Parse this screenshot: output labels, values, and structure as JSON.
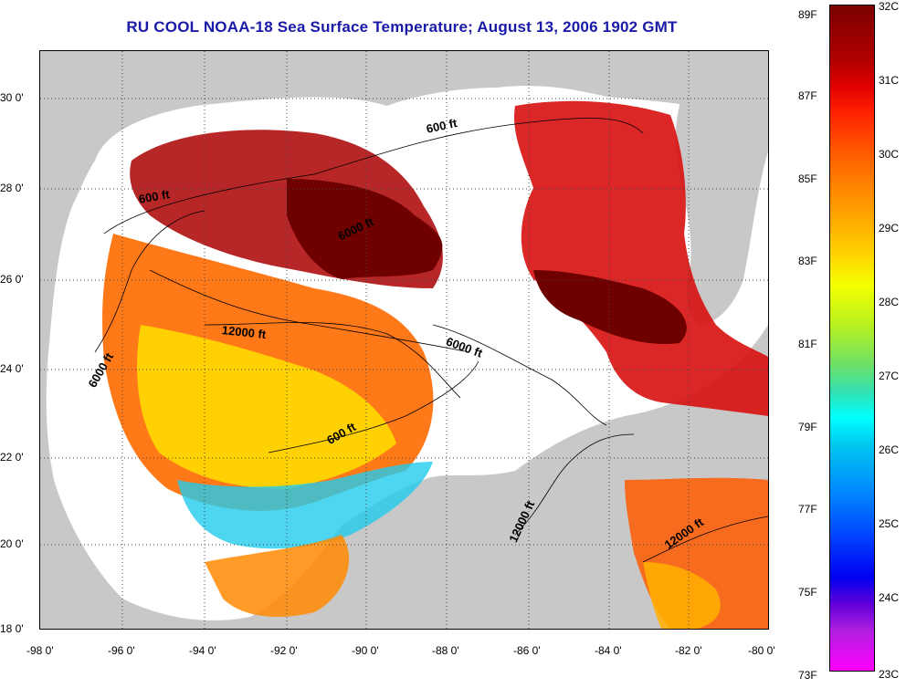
{
  "title": "RU COOL  NOAA-18  Sea Surface Temperature;  August 13, 2006 1902 GMT",
  "latitude_ticks": [
    "30 0'",
    "28 0'",
    "26 0'",
    "24 0'",
    "22 0'",
    "20 0'",
    "18 0'"
  ],
  "longitude_ticks": [
    "-98 0'",
    "-96 0'",
    "-94 0'",
    "-92 0'",
    "-90 0'",
    "-88 0'",
    "-86 0'",
    "-84 0'",
    "-82 0'",
    "-80 0'"
  ],
  "colorbar": {
    "fahrenheit": [
      "89F",
      "87F",
      "85F",
      "83F",
      "81F",
      "79F",
      "77F",
      "75F",
      "73F"
    ],
    "celsius": [
      "32C",
      "31C",
      "30C",
      "29C",
      "28C",
      "27C",
      "26C",
      "25C",
      "24C",
      "23C"
    ]
  },
  "contours": {
    "c1": "600 ft",
    "c2": "600 ft",
    "c3": "6000 ft",
    "c4": "12000 ft",
    "c5": "6000 ft",
    "c6": "6000 ft",
    "c7": "600 ft",
    "c8": "12000 ft",
    "c9": "12000 ft"
  },
  "colors": {
    "land": "#c8c8c8",
    "cloud": "#ffffff",
    "hot": "#8b0000",
    "warm": "#ff5a00",
    "mild": "#ffd000",
    "cool": "#22ccee",
    "title": "#1a1aa8"
  }
}
